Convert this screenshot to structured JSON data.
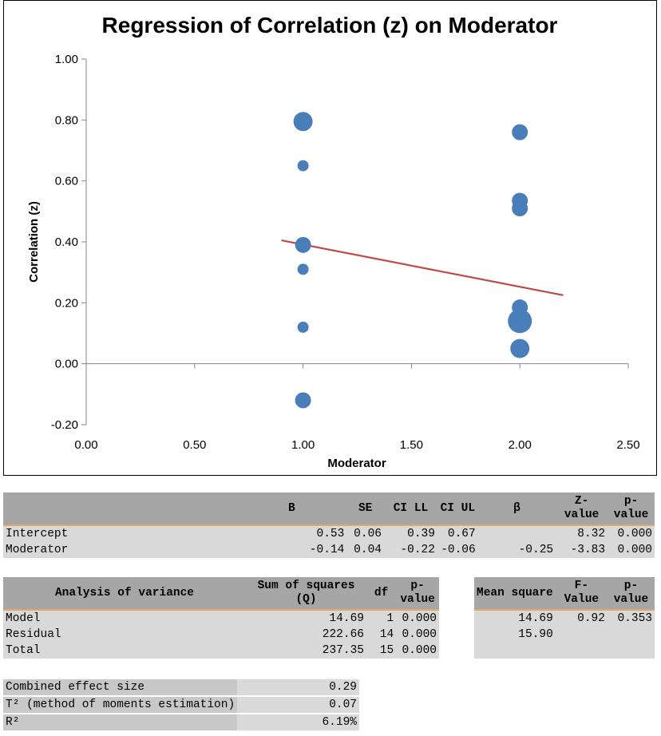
{
  "chart_data": {
    "type": "scatter",
    "title": "Regression of Correlation (z) on Moderator",
    "xlabel": "Moderator",
    "ylabel": "Correlation (z)",
    "xlim": [
      0,
      2.5
    ],
    "ylim": [
      -0.2,
      1.0
    ],
    "x_ticks": [
      "0.00",
      "0.50",
      "1.00",
      "1.50",
      "2.00",
      "2.50"
    ],
    "y_ticks": [
      "-0.20",
      "0.00",
      "0.20",
      "0.40",
      "0.60",
      "0.80",
      "1.00"
    ],
    "points": [
      {
        "x": 1.0,
        "y": 0.795,
        "size": "large"
      },
      {
        "x": 1.0,
        "y": 0.65,
        "size": "small"
      },
      {
        "x": 1.0,
        "y": 0.39,
        "size": "medium"
      },
      {
        "x": 1.0,
        "y": 0.31,
        "size": "small"
      },
      {
        "x": 1.0,
        "y": 0.12,
        "size": "small"
      },
      {
        "x": 1.0,
        "y": -0.12,
        "size": "medium"
      },
      {
        "x": 2.0,
        "y": 0.76,
        "size": "medium"
      },
      {
        "x": 2.0,
        "y": 0.535,
        "size": "medium"
      },
      {
        "x": 2.0,
        "y": 0.51,
        "size": "medium"
      },
      {
        "x": 2.0,
        "y": 0.185,
        "size": "medium"
      },
      {
        "x": 2.0,
        "y": 0.14,
        "size": "xlarge"
      },
      {
        "x": 2.0,
        "y": 0.05,
        "size": "large"
      }
    ],
    "regression_line": {
      "x": [
        0.9,
        2.2
      ],
      "y": [
        0.405,
        0.225
      ]
    },
    "grid": false,
    "colors": {
      "points": "#4a7ebb",
      "line": "#be4b48"
    }
  },
  "regression": {
    "headers": [
      "",
      "B",
      "SE",
      "CI LL",
      "CI UL",
      "β",
      "Z-value",
      "p-value"
    ],
    "rows": [
      [
        "Intercept",
        "0.53",
        "0.06",
        "0.39",
        "0.67",
        "",
        "8.32",
        "0.000"
      ],
      [
        "Moderator",
        "-0.14",
        "0.04",
        "-0.22",
        "-0.06",
        "-0.25",
        "-3.83",
        "0.000"
      ]
    ]
  },
  "anova": {
    "headers": [
      "Analysis of variance",
      "Sum of squares (Q)",
      "df",
      "p-value"
    ],
    "rows": [
      [
        "Model",
        "14.69",
        "1",
        "0.000"
      ],
      [
        "Residual",
        "222.66",
        "14",
        "0.000"
      ],
      [
        "Total",
        "237.35",
        "15",
        "0.000"
      ]
    ]
  },
  "anova_f": {
    "headers": [
      "Mean square",
      "F-Value",
      "p-value"
    ],
    "rows": [
      [
        "14.69",
        "0.92",
        "0.353"
      ],
      [
        "15.90",
        "",
        ""
      ],
      [
        "",
        "",
        ""
      ]
    ]
  },
  "summary": {
    "rows": [
      {
        "label": "Combined effect size",
        "value": "0.29"
      },
      {
        "label": "T² (method of moments estimation)",
        "value": "0.07"
      },
      {
        "label": "R²",
        "value": "6.19%"
      }
    ]
  }
}
